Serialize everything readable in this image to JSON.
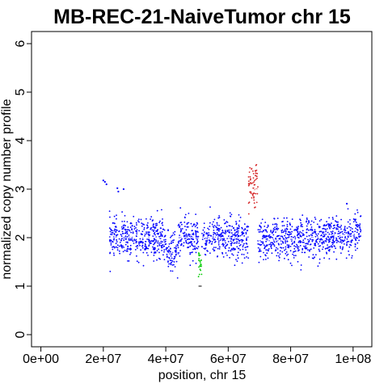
{
  "chart_data": {
    "type": "scatter",
    "title": "MB-REC-21-NaiveTumor chr 15",
    "xlabel": "position, chr 15",
    "ylabel": "normalized copy number profile",
    "xlim": [
      -3000000,
      106000000
    ],
    "ylim": [
      -0.25,
      6.25
    ],
    "x_ticks": [
      0,
      20000000,
      40000000,
      60000000,
      80000000,
      100000000
    ],
    "x_tick_labels": [
      "0e+00",
      "2e+07",
      "4e+07",
      "6e+07",
      "8e+07",
      "1e+08"
    ],
    "y_ticks": [
      0,
      1,
      2,
      3,
      4,
      5,
      6
    ],
    "y_tick_labels": [
      "0",
      "1",
      "2",
      "3",
      "4",
      "5",
      "6"
    ],
    "grid": false,
    "colors": {
      "normal": "#0000ff",
      "gain": "#d62728",
      "loss": "#00cc00",
      "segment": "#ffffff",
      "loss_segment": "#000000"
    },
    "segments": [
      {
        "x": [
          22000000,
          40000000
        ],
        "y": 2.0,
        "state": "normal"
      },
      {
        "x": [
          40000000,
          44000000
        ],
        "y": 1.68,
        "state": "normal"
      },
      {
        "x": [
          44000000,
          50500000
        ],
        "y": 2.0,
        "state": "normal"
      },
      {
        "x": [
          50500000,
          51500000
        ],
        "y": 1.45,
        "state": "loss"
      },
      {
        "x": [
          51500000,
          66500000
        ],
        "y": 2.0,
        "state": "normal"
      },
      {
        "x": [
          66500000,
          69500000
        ],
        "y": 3.0,
        "state": "gain"
      },
      {
        "x": [
          69500000,
          83000000
        ],
        "y": 1.95,
        "state": "normal"
      },
      {
        "x": [
          83000000,
          92000000
        ],
        "y": 2.0,
        "state": "normal"
      },
      {
        "x": [
          92000000,
          102500000
        ],
        "y": 2.05,
        "state": "normal"
      }
    ],
    "outliers": [
      {
        "x": 20000000,
        "y": 3.18
      },
      {
        "x": 20500000,
        "y": 3.15
      },
      {
        "x": 21000000,
        "y": 3.1
      },
      {
        "x": 24500000,
        "y": 3.02
      },
      {
        "x": 24800000,
        "y": 2.95
      },
      {
        "x": 26500000,
        "y": 3.0
      },
      {
        "x": 98000000,
        "y": 2.7
      }
    ]
  }
}
